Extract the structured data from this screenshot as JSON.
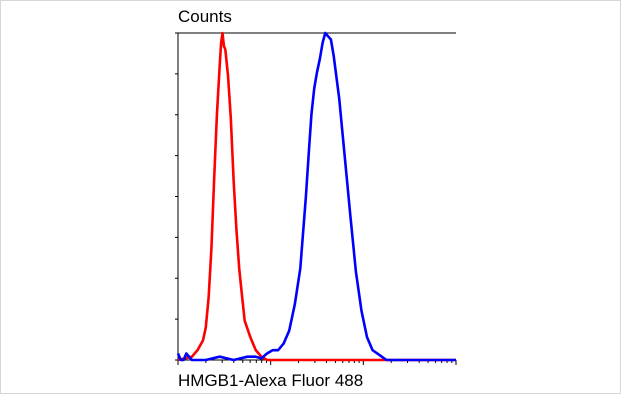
{
  "chart_data": {
    "type": "line",
    "title": "",
    "xlabel": "HMGB1-Alexa Fluor 488",
    "ylabel": "Counts",
    "xscale": "log",
    "xlim": [
      0,
      100
    ],
    "ylim": [
      0,
      100
    ],
    "grid": false,
    "legend": "none",
    "series": [
      {
        "color": "#ff0000",
        "x": [
          0,
          5,
          7,
          9,
          10,
          11,
          12,
          13,
          14,
          15,
          15.5,
          16,
          16.5,
          17,
          18,
          19,
          20,
          21,
          22,
          23,
          24,
          26,
          28,
          30,
          31,
          32,
          50,
          100
        ],
        "y": [
          0,
          1,
          3,
          6,
          10,
          19,
          34,
          55,
          75,
          90,
          97,
          100,
          96,
          95,
          87,
          74,
          55,
          40,
          28,
          20,
          12,
          7,
          3,
          1,
          0.5,
          0,
          0,
          0
        ]
      },
      {
        "color": "#0000ff",
        "x": [
          0,
          1,
          2,
          3,
          5,
          10,
          15,
          20,
          25,
          28,
          30,
          32,
          34,
          36,
          38,
          40,
          42,
          44,
          46,
          47,
          48,
          49,
          50,
          51,
          52,
          53,
          54,
          55,
          56,
          58,
          60,
          62,
          64,
          66,
          68,
          70,
          75,
          100
        ],
        "y": [
          2,
          0,
          0,
          2,
          0,
          0,
          1,
          0,
          1,
          1,
          0.5,
          2,
          3,
          3,
          5,
          9,
          17,
          28,
          50,
          63,
          75,
          83,
          88,
          92,
          97,
          100,
          99,
          98,
          93,
          80,
          62,
          44,
          27,
          15,
          7,
          3,
          0,
          0
        ]
      }
    ]
  }
}
